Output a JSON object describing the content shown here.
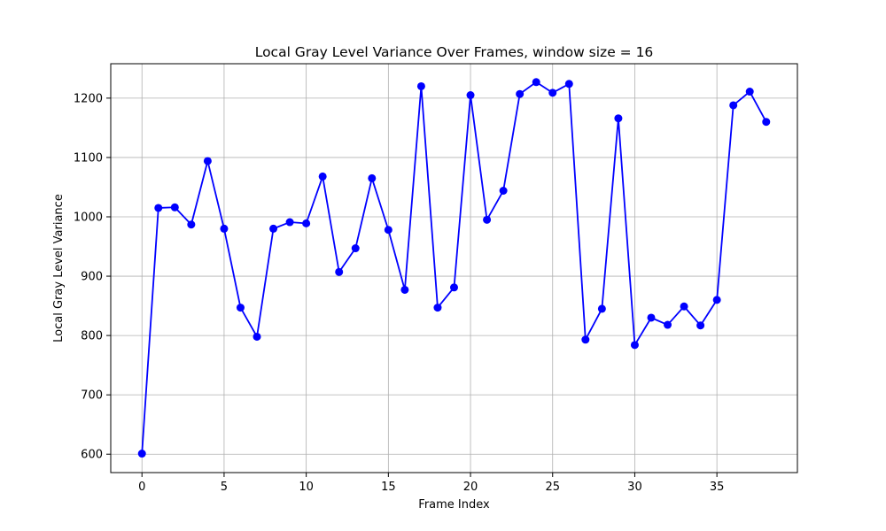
{
  "chart_data": {
    "type": "line",
    "title": "Local Gray Level Variance Over Frames, window size = 16",
    "xlabel": "Frame Index",
    "ylabel": "Local Gray Level Variance",
    "xlim": [
      -1.9,
      39.9
    ],
    "ylim": [
      569,
      1258
    ],
    "xticks": [
      0,
      5,
      10,
      15,
      20,
      25,
      30,
      35
    ],
    "yticks": [
      600,
      700,
      800,
      900,
      1000,
      1100,
      1200
    ],
    "grid": true,
    "series": [
      {
        "color": "#0000ff",
        "marker": "circle",
        "x": [
          0,
          1,
          2,
          3,
          4,
          5,
          6,
          7,
          8,
          9,
          10,
          11,
          12,
          13,
          14,
          15,
          16,
          17,
          18,
          19,
          20,
          21,
          22,
          23,
          24,
          25,
          26,
          27,
          28,
          29,
          30,
          31,
          32,
          33,
          34,
          35,
          36,
          37,
          38
        ],
        "y": [
          601,
          1015,
          1016,
          987,
          1094,
          980,
          847,
          798,
          980,
          991,
          989,
          1068,
          907,
          947,
          1065,
          978,
          877,
          1220,
          847,
          881,
          1205,
          995,
          1044,
          1207,
          1227,
          1209,
          1224,
          793,
          845,
          1166,
          784,
          830,
          818,
          849,
          817,
          860,
          1188,
          1211,
          1160
        ]
      }
    ]
  }
}
